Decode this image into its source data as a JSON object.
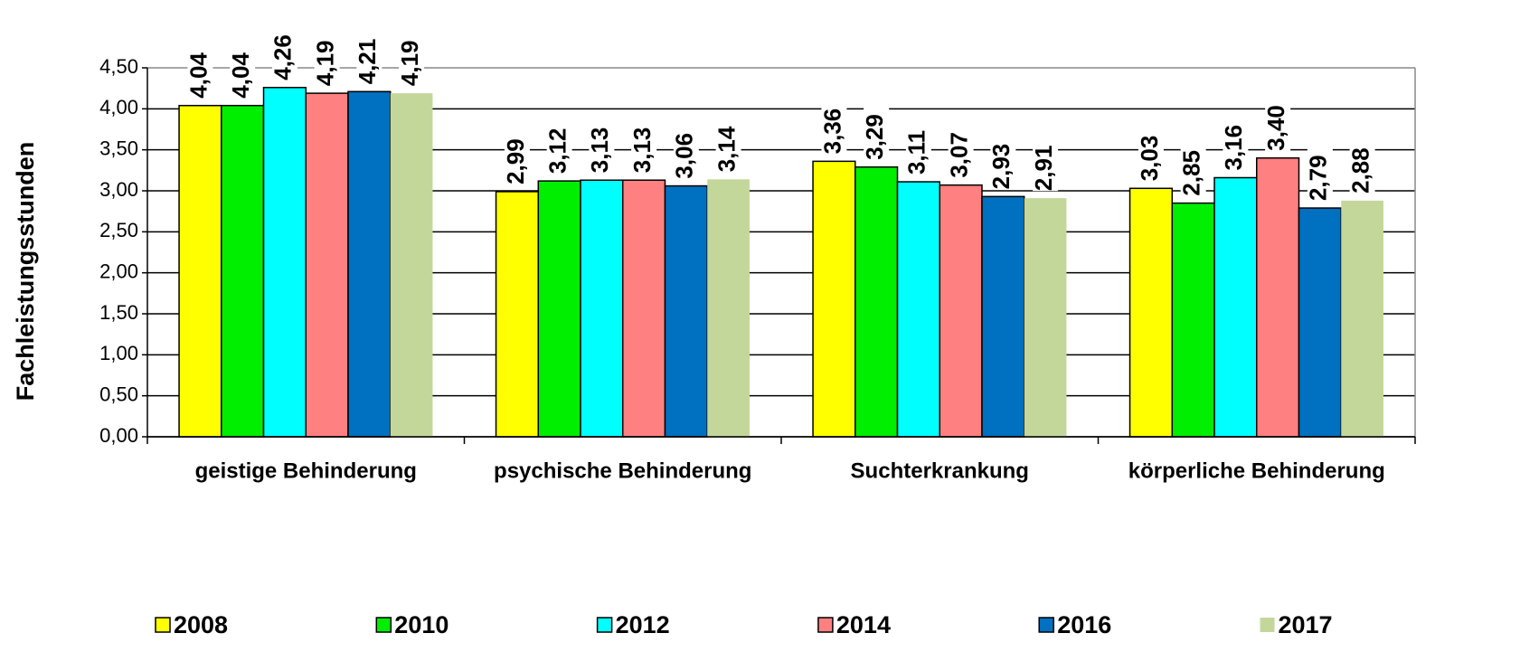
{
  "chart_data": {
    "type": "bar",
    "y_label": "Fachleistungsstunden",
    "categories": [
      "geistige Behinderung",
      "psychische Behinderung",
      "Suchterkrankung",
      "körperliche Behinderung"
    ],
    "series": [
      {
        "name": "2008",
        "color": "#ffff00",
        "values": [
          4.04,
          2.99,
          3.36,
          3.03
        ],
        "value_labels": [
          "4,04",
          "2,99",
          "3,36",
          "3,03"
        ]
      },
      {
        "name": "2010",
        "color": "#00ee00",
        "values": [
          4.04,
          3.12,
          3.29,
          2.85
        ],
        "value_labels": [
          "4,04",
          "3,12",
          "3,29",
          "2,85"
        ]
      },
      {
        "name": "2012",
        "color": "#00ffff",
        "values": [
          4.26,
          3.13,
          3.11,
          3.16
        ],
        "value_labels": [
          "4,26",
          "3,13",
          "3,11",
          "3,16"
        ]
      },
      {
        "name": "2014",
        "color": "#ff8080",
        "values": [
          4.19,
          3.13,
          3.07,
          3.4
        ],
        "value_labels": [
          "4,19",
          "3,13",
          "3,07",
          "3,40"
        ]
      },
      {
        "name": "2016",
        "color": "#0070c0",
        "values": [
          4.21,
          3.06,
          2.93,
          2.79
        ],
        "value_labels": [
          "4,21",
          "3,06",
          "2,93",
          "2,79"
        ]
      },
      {
        "name": "2017",
        "color": "#c4d79b",
        "values": [
          4.19,
          3.14,
          2.91,
          2.88
        ],
        "value_labels": [
          "4,19",
          "3,14",
          "2,91",
          "2,88"
        ]
      }
    ],
    "ylim": [
      0,
      4.5
    ],
    "yticks": [
      {
        "value": 0,
        "label": "0,00"
      },
      {
        "value": 0.5,
        "label": "0,50"
      },
      {
        "value": 1,
        "label": "1,00"
      },
      {
        "value": 1.5,
        "label": "1,50"
      },
      {
        "value": 2,
        "label": "2,00"
      },
      {
        "value": 2.5,
        "label": "2,50"
      },
      {
        "value": 3,
        "label": "3,00"
      },
      {
        "value": 3.5,
        "label": "3,50"
      },
      {
        "value": 4,
        "label": "4,00"
      },
      {
        "value": 4.5,
        "label": "4,50"
      }
    ],
    "grid": true,
    "legend": "bottom"
  }
}
